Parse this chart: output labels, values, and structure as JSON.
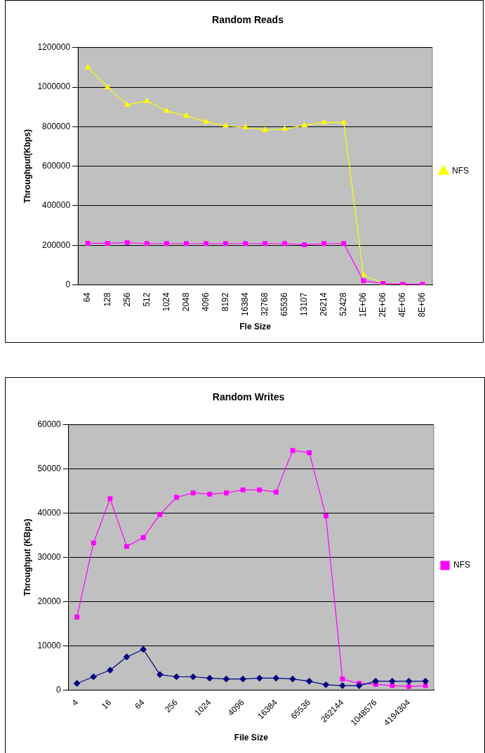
{
  "chart_data": [
    {
      "type": "line",
      "title": "Random Reads",
      "xlabel": "Fle Size",
      "ylabel": "Throughput(Kbps)",
      "categories": [
        "64",
        "128",
        "256",
        "512",
        "1024",
        "2048",
        "4096",
        "8192",
        "16384",
        "32768",
        "65536",
        "13107",
        "26214",
        "52428",
        "1E+06",
        "2E+06",
        "4E+06",
        "8E+06"
      ],
      "series": [
        {
          "color": "#ff00ff",
          "marker": "square",
          "values": [
            210000,
            210000,
            214000,
            209000,
            209000,
            209000,
            209000,
            209000,
            209000,
            209000,
            209000,
            203000,
            209000,
            209000,
            20000,
            8000,
            3000,
            3000
          ]
        },
        {
          "name": "NFS",
          "color": "#ffff00",
          "marker": "triangle",
          "values": [
            1100000,
            1000000,
            910000,
            930000,
            880000,
            855000,
            825000,
            805000,
            797000,
            783000,
            788000,
            807000,
            822000,
            822000,
            50000,
            8000,
            3000,
            3000
          ]
        }
      ],
      "ylim": [
        0,
        1200000
      ],
      "yticks": [
        0,
        200000,
        400000,
        600000,
        800000,
        1000000,
        1200000
      ],
      "grid": "y",
      "legend": "right"
    },
    {
      "type": "line",
      "title": "Random Writes",
      "xlabel": "File Size",
      "ylabel": "Throughput (KBps)",
      "categories": [
        "4",
        null,
        "16",
        null,
        "64",
        null,
        "256",
        null,
        "1024",
        null,
        "4096",
        null,
        "16384",
        null,
        "65536",
        null,
        "262144",
        null,
        "1048576",
        null,
        "4194304",
        null
      ],
      "series": [
        {
          "color": "#000080",
          "marker": "diamond",
          "values": [
            1500,
            3000,
            4500,
            7500,
            9200,
            3500,
            3000,
            3000,
            2700,
            2500,
            2500,
            2700,
            2700,
            2500,
            2000,
            1200,
            1000,
            1000,
            2000,
            2000,
            2000,
            2000
          ]
        },
        {
          "name": "NFS",
          "color": "#ff00ff",
          "marker": "square",
          "values": [
            16500,
            33300,
            43300,
            32500,
            34500,
            39700,
            43600,
            44600,
            44300,
            44600,
            45300,
            45300,
            44800,
            54200,
            53700,
            39400,
            2500,
            1500,
            1300,
            1000,
            800,
            1000
          ]
        }
      ],
      "ylim": [
        0,
        60000
      ],
      "yticks": [
        0,
        10000,
        20000,
        30000,
        40000,
        50000,
        60000
      ],
      "grid": "y",
      "legend": "right"
    }
  ]
}
